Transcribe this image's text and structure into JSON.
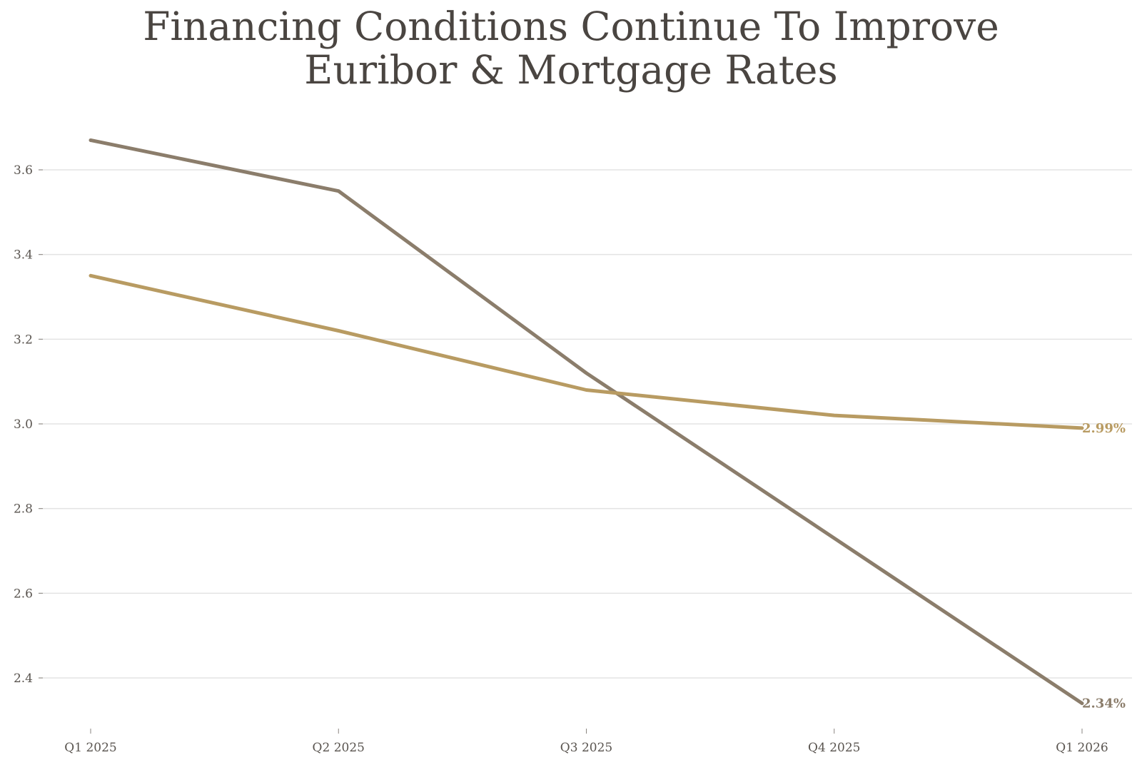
{
  "chart_data": {
    "type": "line",
    "title": "Financing Conditions Continue To Improve",
    "subtitle": "Euribor & Mortgage Rates",
    "categories": [
      "Q1 2025",
      "Q2 2025",
      "Q3 2025",
      "Q4 2025",
      "Q1 2026"
    ],
    "series": [
      {
        "values": [
          3.67,
          3.55,
          3.12,
          2.73,
          2.34
        ],
        "color": "#8b7d6b",
        "end_label": "2.34%"
      },
      {
        "values": [
          3.35,
          3.22,
          3.08,
          3.02,
          2.99
        ],
        "color": "#b89b62",
        "end_label": "2.99%"
      }
    ],
    "yticks": [
      "2.4",
      "2.6",
      "2.8",
      "3.0",
      "3.2",
      "3.4",
      "3.6"
    ],
    "ylim": [
      2.3,
      3.73
    ],
    "grid": "horizontal",
    "xlabel": "",
    "ylabel": ""
  }
}
